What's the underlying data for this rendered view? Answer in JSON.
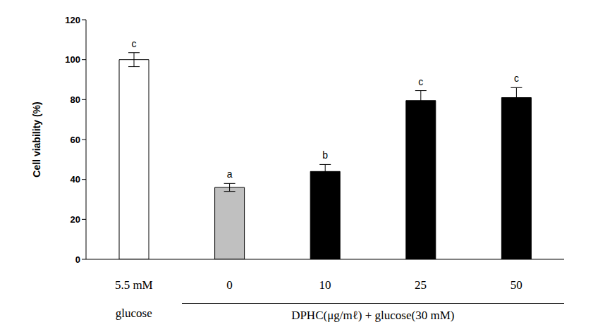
{
  "chart_data": {
    "type": "bar",
    "y_label": "Cell viability (%)",
    "categories": [
      "5.5 mM glucose",
      "0",
      "10",
      "25",
      "50"
    ],
    "values": [
      100,
      36,
      44,
      79.5,
      81
    ],
    "errors": [
      3.5,
      2,
      3.5,
      5,
      5
    ],
    "significance_letters": [
      "c",
      "a",
      "b",
      "c",
      "c"
    ],
    "colors": [
      "#ffffff",
      "#c0c0c0",
      "#000000",
      "#000000",
      "#000000"
    ],
    "groups": [
      {
        "label": "DPHC(μg/mℓ) + glucose(30 mM)",
        "categories": [
          "0",
          "10",
          "25",
          "50"
        ]
      }
    ],
    "ylim": [
      0,
      120
    ],
    "yticks": [
      0,
      20,
      40,
      60,
      80,
      100,
      120
    ],
    "grid": false
  }
}
